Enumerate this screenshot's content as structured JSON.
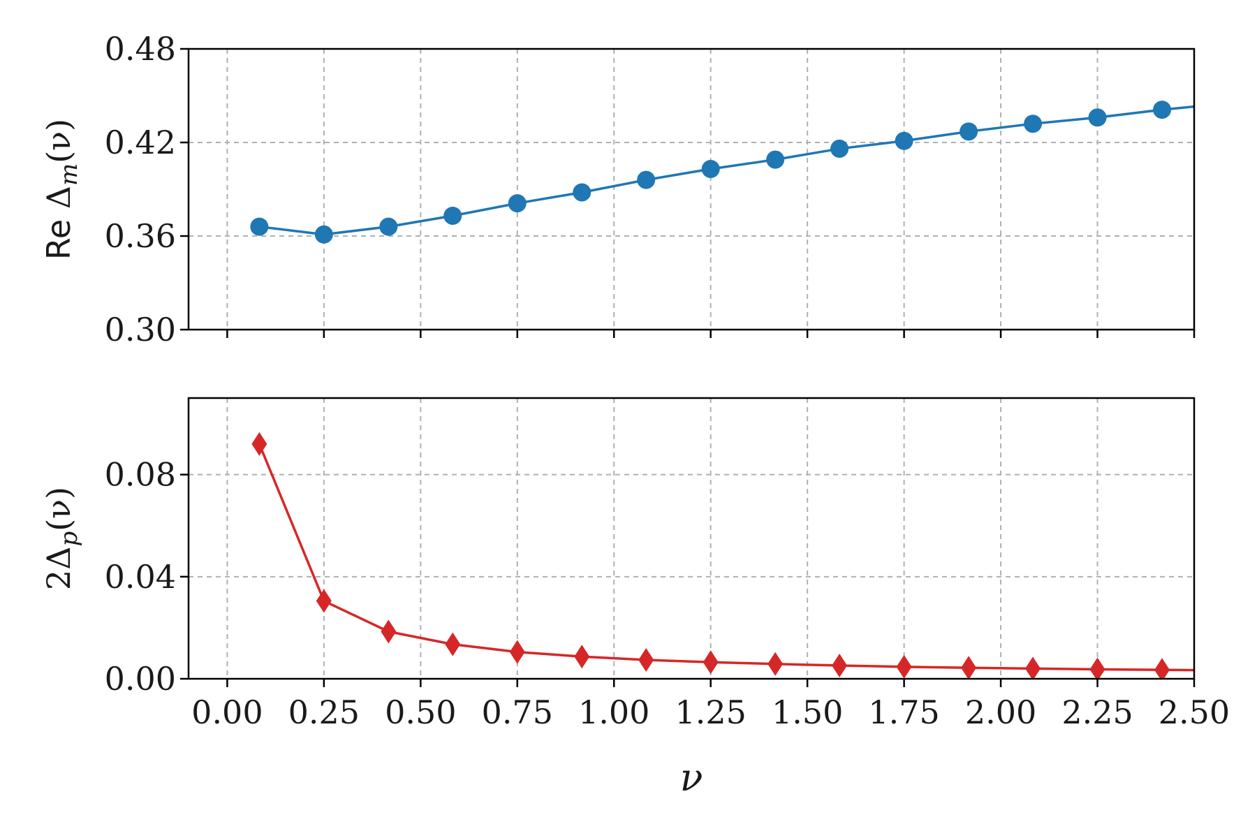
{
  "chart_data": [
    {
      "type": "line",
      "xlabel": "",
      "ylabel_prefix": "Re ",
      "ylabel_symbol": "Δ",
      "ylabel_sub": "m",
      "ylabel_arg": "(ν)",
      "xlim": [
        -0.1,
        2.5
      ],
      "ylim": [
        0.3,
        0.48
      ],
      "xticks": [
        0.0,
        0.25,
        0.5,
        0.75,
        1.0,
        1.25,
        1.5,
        1.75,
        2.0,
        2.25,
        2.5
      ],
      "xtick_labels": [
        "0.00",
        "0.25",
        "0.50",
        "0.75",
        "1.00",
        "1.25",
        "1.50",
        "1.75",
        "2.00",
        "2.25",
        "2.50"
      ],
      "show_xtick_labels": false,
      "yticks": [
        0.3,
        0.36,
        0.42,
        0.48
      ],
      "ytick_labels": [
        "0.30",
        "0.36",
        "0.42",
        "0.48"
      ],
      "grid": true,
      "series": [
        {
          "marker": "circle",
          "color": "#1f77b4",
          "x": [
            0.083,
            0.25,
            0.417,
            0.583,
            0.75,
            0.917,
            1.083,
            1.25,
            1.417,
            1.583,
            1.75,
            1.917,
            2.083,
            2.25,
            2.417,
            2.5
          ],
          "y": [
            0.366,
            0.361,
            0.366,
            0.373,
            0.381,
            0.388,
            0.396,
            0.403,
            0.409,
            0.416,
            0.421,
            0.427,
            0.432,
            0.436,
            0.441,
            0.443
          ],
          "markers_hidden_last": true
        }
      ]
    },
    {
      "type": "line",
      "xlabel": "ν",
      "ylabel_prefix": "2",
      "ylabel_symbol": "Δ",
      "ylabel_sub": "p",
      "ylabel_arg": "(ν)",
      "xlim": [
        -0.1,
        2.5
      ],
      "ylim": [
        0.0,
        0.11
      ],
      "xticks": [
        0.0,
        0.25,
        0.5,
        0.75,
        1.0,
        1.25,
        1.5,
        1.75,
        2.0,
        2.25,
        2.5
      ],
      "xtick_labels": [
        "0.00",
        "0.25",
        "0.50",
        "0.75",
        "1.00",
        "1.25",
        "1.50",
        "1.75",
        "2.00",
        "2.25",
        "2.50"
      ],
      "show_xtick_labels": true,
      "yticks": [
        0.0,
        0.04,
        0.08
      ],
      "ytick_labels": [
        "0.00",
        "0.04",
        "0.08"
      ],
      "grid": true,
      "series": [
        {
          "marker": "diamond",
          "color": "#d62728",
          "x": [
            0.083,
            0.25,
            0.417,
            0.583,
            0.75,
            0.917,
            1.083,
            1.25,
            1.417,
            1.583,
            1.75,
            1.917,
            2.083,
            2.25,
            2.417,
            2.5
          ],
          "y": [
            0.092,
            0.0305,
            0.0185,
            0.0135,
            0.0105,
            0.0087,
            0.0074,
            0.0065,
            0.0058,
            0.0052,
            0.0047,
            0.0043,
            0.004,
            0.0037,
            0.0035,
            0.0034
          ],
          "markers_hidden_last": true
        }
      ]
    }
  ]
}
